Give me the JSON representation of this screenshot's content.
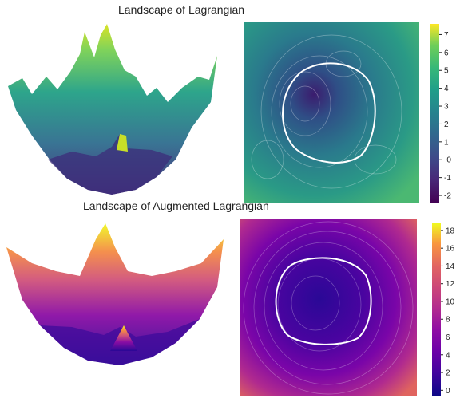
{
  "chart_data": [
    {
      "type": "surface",
      "title": "Landscape of Lagrangian",
      "colormap": "viridis",
      "z_range": [
        -2,
        7.5
      ],
      "description_kind": "3d-surface"
    },
    {
      "type": "heatmap",
      "title": "",
      "colormap": "viridis",
      "colorbar_ticks": [
        "-2",
        "-1",
        "-0",
        "1",
        "2",
        "3",
        "4",
        "5",
        "6",
        "7"
      ],
      "colorbar_values": [
        -2,
        -1,
        0,
        1,
        2,
        3,
        4,
        5,
        6,
        7
      ],
      "colorbar_range": [
        -2.4,
        7.6
      ],
      "contour_lines": "white",
      "overlay": "closed constraint curve"
    },
    {
      "type": "surface",
      "title": "Landscape of Augmented Lagrangian",
      "colormap": "plasma",
      "z_range": [
        0,
        18.5
      ],
      "description_kind": "3d-surface"
    },
    {
      "type": "heatmap",
      "title": "",
      "colormap": "plasma",
      "colorbar_ticks": [
        "0",
        "2",
        "4",
        "6",
        "8",
        "10",
        "12",
        "14",
        "16",
        "18"
      ],
      "colorbar_values": [
        0,
        2,
        4,
        6,
        8,
        10,
        12,
        14,
        16,
        18
      ],
      "colorbar_range": [
        -0.6,
        18.8
      ],
      "contour_lines": "white",
      "overlay": "closed constraint curve"
    }
  ]
}
